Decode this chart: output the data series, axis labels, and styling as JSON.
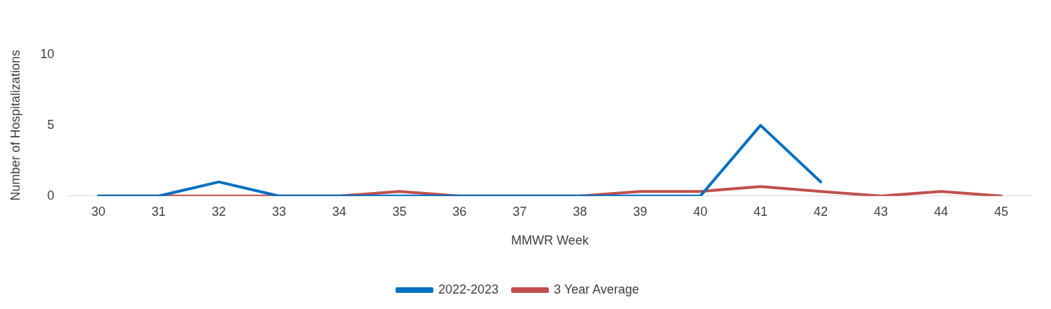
{
  "chart_data": {
    "type": "line",
    "xlabel": "MMWR Week",
    "ylabel": "Number of Hospitalizations",
    "categories": [
      "30",
      "31",
      "32",
      "33",
      "34",
      "35",
      "36",
      "37",
      "38",
      "39",
      "40",
      "41",
      "42",
      "43",
      "44",
      "45"
    ],
    "series": [
      {
        "name": "2022-2023",
        "color": "#0070c0",
        "values": [
          0,
          0,
          1,
          0,
          0,
          0,
          0,
          0,
          0,
          0,
          0,
          5,
          1,
          null,
          null,
          null
        ]
      },
      {
        "name": "3 Year Average",
        "color": "#c0504d",
        "values": [
          0,
          0,
          0,
          0,
          0,
          0.33,
          0,
          0,
          0,
          0.33,
          0.33,
          0.67,
          0.33,
          0,
          0.33,
          0
        ]
      }
    ],
    "ylim": [
      0,
      10
    ],
    "yticks": [
      0,
      5,
      10
    ],
    "grid": false,
    "legend": "bottom",
    "marker": "none"
  }
}
